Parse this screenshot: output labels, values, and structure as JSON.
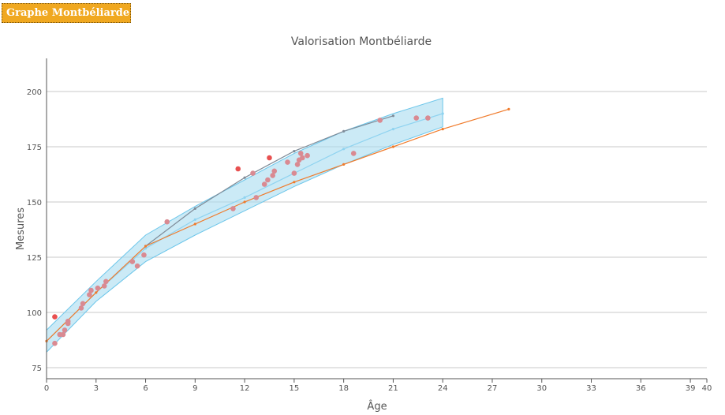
{
  "header": {
    "title": "Graphe Montbéliarde"
  },
  "chart_data": {
    "type": "line",
    "title": "Valorisation Montbéliarde",
    "xlabel": "Âge",
    "ylabel": "Mesures",
    "xlim": [
      0,
      40
    ],
    "ylim": [
      70,
      215
    ],
    "x_ticks": [
      "0",
      "3",
      "6",
      "9",
      "12",
      "15",
      "18",
      "21",
      "24",
      "27",
      "30",
      "33",
      "36",
      "39",
      "40"
    ],
    "x_tick_values": [
      0,
      3,
      6,
      9,
      12,
      15,
      18,
      21,
      24,
      27,
      30,
      33,
      36,
      39,
      40
    ],
    "y_ticks": [
      75,
      100,
      125,
      150,
      175,
      200
    ],
    "grid": true,
    "legend": "none",
    "colors": {
      "band": "#a8dcf0",
      "band_edge": "#6cc6ea",
      "mid_line": "#8fd3f0",
      "upper_line": "#7f8c99",
      "orange_line": "#f07a2a",
      "points": "#d98a92",
      "highlight_points": "#e85050",
      "grid": "#c8c8c8"
    },
    "band": {
      "x": [
        0,
        3,
        6,
        9,
        12,
        15,
        18,
        21,
        24
      ],
      "lower": [
        82,
        105,
        123,
        135,
        146,
        157,
        167,
        176,
        184
      ],
      "upper": [
        92,
        114,
        135,
        148,
        160,
        172,
        182,
        190,
        197
      ]
    },
    "series": [
      {
        "x": [
          0,
          3,
          6,
          9,
          12,
          15,
          18,
          21,
          24
        ],
        "y": [
          87,
          109,
          129,
          142,
          152,
          163,
          174,
          183,
          190
        ],
        "color": "#8fd3f0"
      },
      {
        "x": [
          6,
          9,
          12,
          15,
          18,
          21
        ],
        "y": [
          130,
          147,
          161,
          173,
          182,
          189
        ],
        "color": "#7f8c99"
      },
      {
        "x": [
          0,
          3,
          6,
          9,
          12,
          15,
          18,
          21,
          24,
          28
        ],
        "y": [
          87,
          109,
          130,
          140,
          150,
          159,
          167,
          175,
          183,
          192
        ],
        "color": "#f07a2a"
      }
    ],
    "scatter": {
      "x": [
        0.5,
        0.8,
        1.0,
        1.1,
        1.3,
        1.3,
        2.1,
        2.2,
        2.6,
        2.7,
        3.1,
        3.5,
        3.6,
        5.2,
        5.5,
        5.9,
        7.3,
        11.3,
        12.5,
        12.7,
        13.2,
        13.4,
        13.7,
        13.8,
        14.6,
        15.0,
        15.2,
        15.3,
        15.4,
        15.5,
        15.8,
        18.6,
        20.2,
        22.4,
        23.1
      ],
      "y": [
        86,
        90,
        90,
        92,
        95,
        96,
        102,
        104,
        108,
        110,
        111,
        112,
        114,
        123,
        121,
        126,
        141,
        147,
        163,
        152,
        158,
        160,
        162,
        164,
        168,
        163,
        167,
        169,
        172,
        170,
        171,
        172,
        187,
        188,
        188
      ]
    },
    "highlight_points": {
      "x": [
        0.5,
        11.6,
        13.5
      ],
      "y": [
        98,
        165,
        170
      ]
    }
  }
}
